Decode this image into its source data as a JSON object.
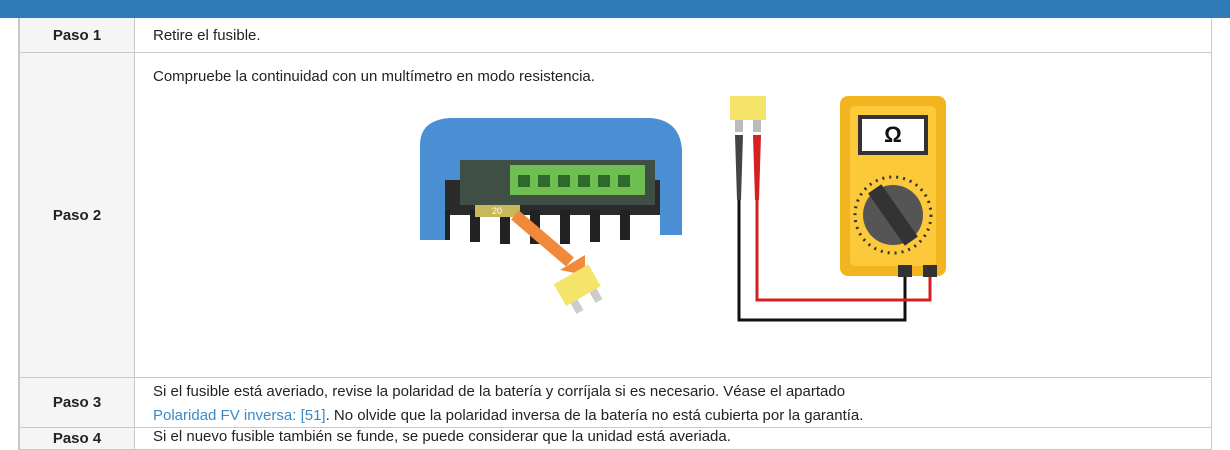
{
  "table": {
    "rows": [
      {
        "label": "Paso 1",
        "text": "Retire el fusible."
      },
      {
        "label": "Paso 2",
        "text": "Compruebe la continuidad con un multímetro en modo resistencia."
      },
      {
        "label": "Paso 3",
        "text": "Si el fusible está averiado, revise la polaridad de la batería y corríjala si es necesario. Véase el apartado",
        "link": "Polaridad FV inversa: [51]",
        "text_after": ". No olvide que la polaridad inversa de la batería no está cubierta por la garantía."
      },
      {
        "label": "Paso 4",
        "text": "Si el nuevo fusible también se funde, se puede considerar que la unidad está averiada."
      }
    ]
  },
  "illustration": {
    "fuse_rating": "20",
    "meter_symbol": "Ω"
  }
}
